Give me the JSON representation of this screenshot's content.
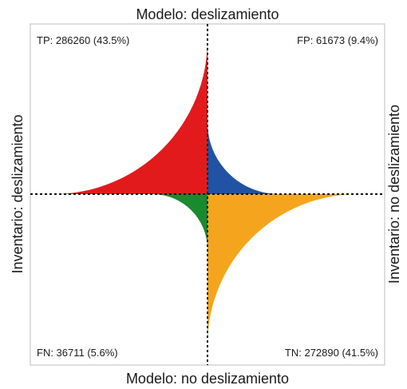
{
  "chart_data": {
    "type": "fourfold",
    "title": "",
    "axes": {
      "top": "Modelo: deslizamiento",
      "bottom": "Modelo: no deslizamiento",
      "left": "Inventario: deslizamiento",
      "right": "Inventario: no deslizamiento"
    },
    "cells": [
      {
        "key": "TP",
        "quadrant": "top-left",
        "value": 286260,
        "percent": 43.5,
        "color": "#e31a1c",
        "label": "TP: 286260 (43.5%)"
      },
      {
        "key": "FP",
        "quadrant": "top-right",
        "value": 61673,
        "percent": 9.4,
        "color": "#2152a3",
        "label": "FP: 61673 (9.4%)"
      },
      {
        "key": "FN",
        "quadrant": "bottom-left",
        "value": 36711,
        "percent": 5.6,
        "color": "#1a8a2e",
        "label": "FN: 36711 (5.6%)"
      },
      {
        "key": "TN",
        "quadrant": "bottom-right",
        "value": 272890,
        "percent": 41.5,
        "color": "#f5a51d",
        "label": "TN: 272890 (41.5%)"
      }
    ],
    "divider_style": "dotted",
    "frame": true
  }
}
